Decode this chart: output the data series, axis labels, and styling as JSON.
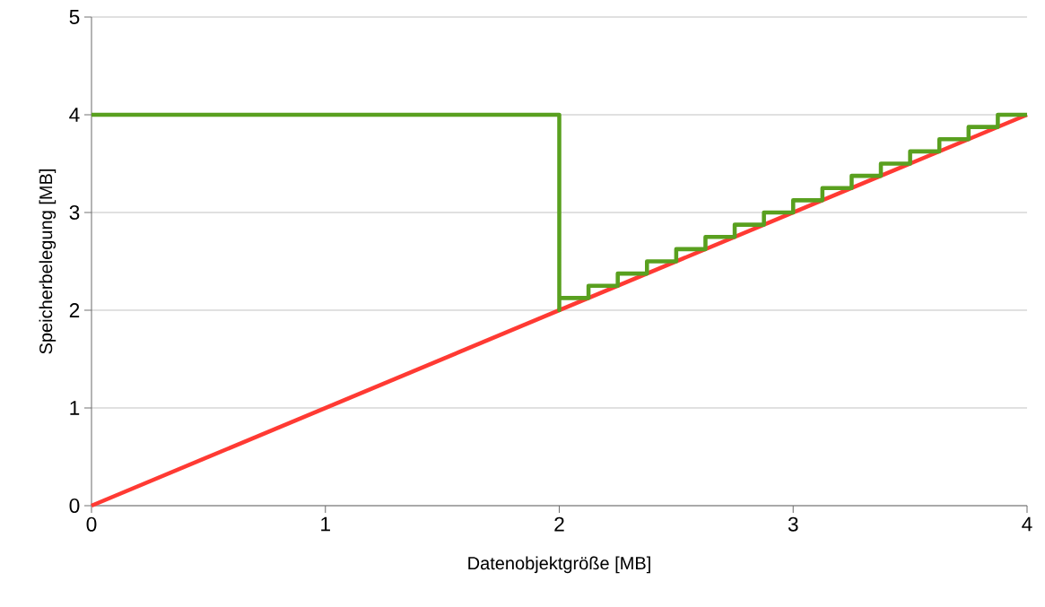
{
  "chart_data": {
    "type": "line",
    "xlabel": "Datenobjektgröße [MB]",
    "ylabel": "Speicherbelegung [MB]",
    "xlim": [
      0,
      4
    ],
    "ylim": [
      0,
      5
    ],
    "xticks": [
      0,
      1,
      2,
      3,
      4
    ],
    "yticks": [
      0,
      1,
      2,
      3,
      4,
      5
    ],
    "grid": "y",
    "series": [
      {
        "type": "step",
        "color": "#59a01f",
        "x": [
          0,
          2,
          2,
          2.125,
          2.25,
          2.375,
          2.5,
          2.625,
          2.75,
          2.875,
          3,
          3.125,
          3.25,
          3.375,
          3.5,
          3.625,
          3.75,
          3.875,
          4
        ],
        "values": [
          4,
          2,
          2.125,
          2.25,
          2.375,
          2.5,
          2.625,
          2.75,
          2.875,
          3,
          3.125,
          3.25,
          3.375,
          3.5,
          3.625,
          3.75,
          3.875,
          4,
          4
        ]
      },
      {
        "color": "#ff3a33",
        "x": [
          0,
          4
        ],
        "values": [
          0,
          4
        ]
      }
    ]
  }
}
